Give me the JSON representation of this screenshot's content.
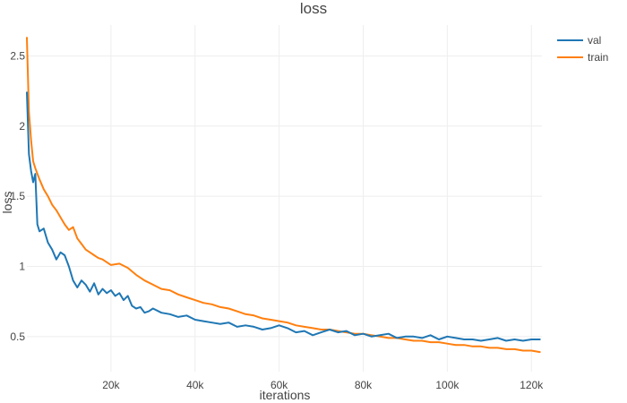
{
  "chart_data": {
    "type": "line",
    "title": "loss",
    "xlabel": "iterations",
    "ylabel": "loss",
    "xlim": [
      0,
      122500
    ],
    "ylim": [
      0.25,
      2.72
    ],
    "x_ticks": [
      20000,
      40000,
      60000,
      80000,
      100000,
      120000
    ],
    "x_tick_labels": [
      "20k",
      "40k",
      "60k",
      "80k",
      "100k",
      "120k"
    ],
    "y_ticks": [
      0.5,
      1,
      1.5,
      2,
      2.5
    ],
    "y_tick_labels": [
      "0.5",
      "1",
      "1.5",
      "2",
      "2.5"
    ],
    "grid": true,
    "legend_position": "top-right",
    "series": [
      {
        "name": "val",
        "color": "#1f77b4",
        "x": [
          0,
          500,
          1000,
          1500,
          2000,
          2500,
          3000,
          3500,
          4000,
          5000,
          6000,
          7000,
          8000,
          9000,
          10000,
          11000,
          12000,
          13000,
          14000,
          15000,
          16000,
          17000,
          18000,
          19000,
          20000,
          21000,
          22000,
          23000,
          24000,
          25000,
          26000,
          27000,
          28000,
          29000,
          30000,
          32000,
          34000,
          36000,
          38000,
          40000,
          42000,
          44000,
          46000,
          48000,
          50000,
          52000,
          54000,
          56000,
          58000,
          60000,
          62000,
          64000,
          66000,
          68000,
          70000,
          72000,
          74000,
          76000,
          78000,
          80000,
          82000,
          84000,
          86000,
          88000,
          90000,
          92000,
          94000,
          96000,
          98000,
          100000,
          102000,
          104000,
          106000,
          108000,
          110000,
          112000,
          114000,
          116000,
          118000,
          120000,
          122000
        ],
        "values": [
          2.24,
          1.8,
          1.68,
          1.6,
          1.66,
          1.3,
          1.25,
          1.26,
          1.27,
          1.17,
          1.12,
          1.05,
          1.1,
          1.08,
          1.0,
          0.9,
          0.85,
          0.9,
          0.87,
          0.82,
          0.88,
          0.8,
          0.84,
          0.81,
          0.83,
          0.79,
          0.81,
          0.76,
          0.79,
          0.72,
          0.7,
          0.71,
          0.67,
          0.68,
          0.7,
          0.67,
          0.66,
          0.64,
          0.65,
          0.62,
          0.61,
          0.6,
          0.59,
          0.6,
          0.57,
          0.58,
          0.57,
          0.55,
          0.56,
          0.58,
          0.56,
          0.53,
          0.54,
          0.51,
          0.53,
          0.55,
          0.53,
          0.54,
          0.51,
          0.52,
          0.5,
          0.51,
          0.52,
          0.49,
          0.5,
          0.5,
          0.49,
          0.51,
          0.48,
          0.5,
          0.49,
          0.48,
          0.48,
          0.47,
          0.48,
          0.49,
          0.47,
          0.48,
          0.47,
          0.48,
          0.48
        ]
      },
      {
        "name": "train",
        "color": "#ff7f0e",
        "x": [
          0,
          500,
          1000,
          1500,
          2000,
          3000,
          4000,
          5000,
          6000,
          7000,
          8000,
          9000,
          10000,
          11000,
          12000,
          13000,
          14000,
          15000,
          16000,
          17000,
          18000,
          19000,
          20000,
          22000,
          24000,
          26000,
          28000,
          30000,
          32000,
          34000,
          36000,
          38000,
          40000,
          42000,
          44000,
          46000,
          48000,
          50000,
          52000,
          54000,
          56000,
          58000,
          60000,
          62000,
          64000,
          66000,
          68000,
          70000,
          72000,
          74000,
          76000,
          78000,
          80000,
          82000,
          84000,
          86000,
          88000,
          90000,
          92000,
          94000,
          96000,
          98000,
          100000,
          102000,
          104000,
          106000,
          108000,
          110000,
          112000,
          114000,
          116000,
          118000,
          120000,
          122000
        ],
        "values": [
          2.63,
          2.1,
          1.9,
          1.75,
          1.7,
          1.62,
          1.55,
          1.5,
          1.44,
          1.4,
          1.35,
          1.3,
          1.26,
          1.28,
          1.2,
          1.16,
          1.12,
          1.1,
          1.08,
          1.06,
          1.05,
          1.03,
          1.01,
          1.02,
          0.99,
          0.94,
          0.9,
          0.87,
          0.84,
          0.83,
          0.8,
          0.78,
          0.76,
          0.74,
          0.73,
          0.71,
          0.7,
          0.68,
          0.66,
          0.65,
          0.63,
          0.62,
          0.61,
          0.6,
          0.58,
          0.57,
          0.56,
          0.55,
          0.55,
          0.54,
          0.53,
          0.52,
          0.52,
          0.51,
          0.5,
          0.49,
          0.49,
          0.48,
          0.47,
          0.47,
          0.46,
          0.46,
          0.45,
          0.44,
          0.44,
          0.43,
          0.43,
          0.42,
          0.42,
          0.41,
          0.41,
          0.4,
          0.4,
          0.39
        ]
      }
    ]
  }
}
